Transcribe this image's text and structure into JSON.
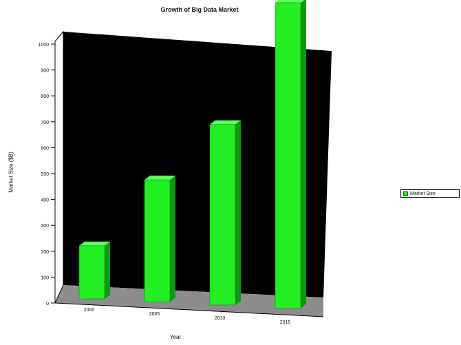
{
  "chart_data": {
    "type": "bar",
    "title": "Growth of Big Data Market",
    "xlabel": "Year",
    "ylabel": "Market Size ($B)",
    "categories": [
      "2000",
      "2005",
      "2010",
      "2015"
    ],
    "series": [
      {
        "name": "Market Size",
        "values": [
          200,
          460,
          680,
          1150
        ]
      }
    ],
    "ylim": [
      0,
      1400
    ],
    "yticks": [
      "0",
      "100",
      "200",
      "300",
      "400",
      "500",
      "600",
      "700",
      "800",
      "900",
      "1000"
    ],
    "style": "3d",
    "legend_position": "right",
    "colors": {
      "bar_front": "#22ee22",
      "bar_side": "#0e9a0e",
      "bar_top": "#5cff5c",
      "wall": "#000000",
      "floor": "#8c8c8c"
    }
  }
}
